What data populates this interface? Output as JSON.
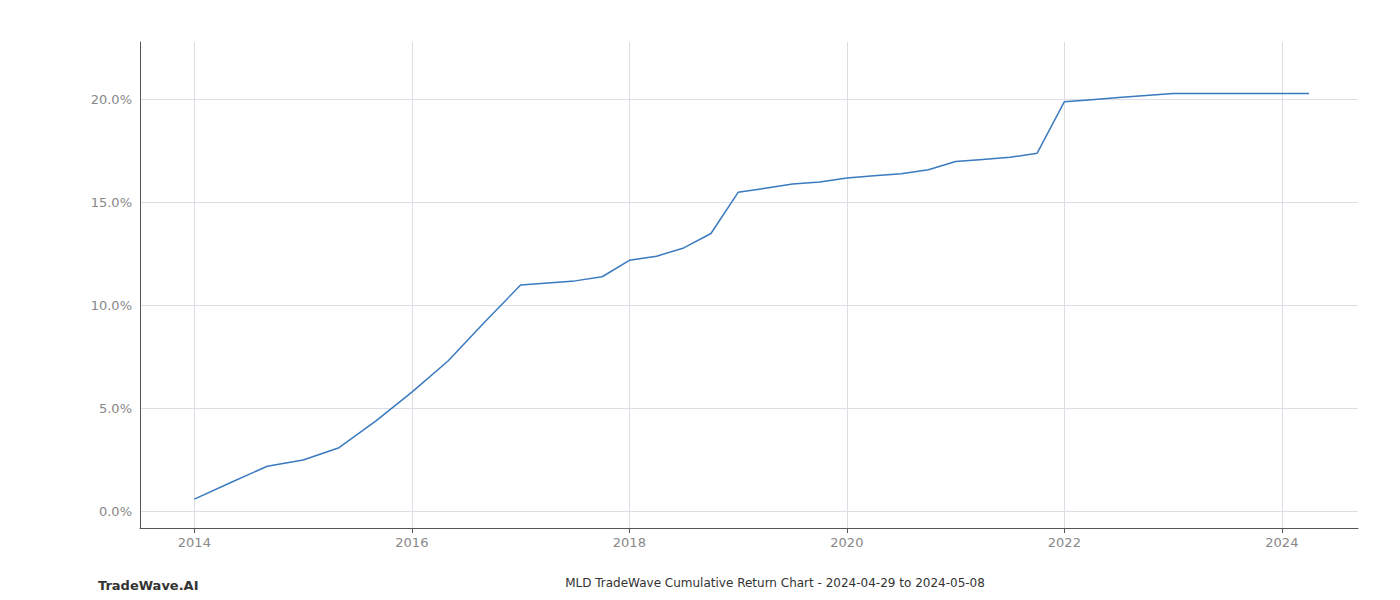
{
  "chart_data": {
    "type": "line",
    "title": "MLD TradeWave Cumulative Return Chart - 2024-04-29 to 2024-05-08",
    "annotations": [
      "TradeWave.AI"
    ],
    "x": [
      2014.0,
      2014.33,
      2014.67,
      2015.0,
      2015.33,
      2015.67,
      2016.0,
      2016.33,
      2016.67,
      2017.0,
      2017.25,
      2017.5,
      2017.75,
      2018.0,
      2018.25,
      2018.5,
      2018.75,
      2019.0,
      2019.25,
      2019.5,
      2019.75,
      2020.0,
      2020.25,
      2020.5,
      2020.75,
      2021.0,
      2021.25,
      2021.5,
      2021.75,
      2022.0,
      2022.25,
      2022.5,
      2022.75,
      2023.0,
      2023.25,
      2023.5,
      2023.75,
      2024.0,
      2024.25
    ],
    "values": [
      0.006,
      0.014,
      0.022,
      0.025,
      0.031,
      0.044,
      0.058,
      0.073,
      0.092,
      0.11,
      0.111,
      0.112,
      0.114,
      0.122,
      0.124,
      0.128,
      0.135,
      0.155,
      0.157,
      0.159,
      0.16,
      0.162,
      0.163,
      0.164,
      0.166,
      0.17,
      0.171,
      0.172,
      0.174,
      0.199,
      0.2,
      0.201,
      0.202,
      0.203,
      0.203,
      0.203,
      0.203,
      0.203,
      0.203
    ],
    "color": "#3a7abf",
    "xlim": [
      2013.5,
      2024.7
    ],
    "ylim": [
      -0.008,
      0.228
    ],
    "xticks": [
      2014,
      2016,
      2018,
      2020,
      2022,
      2024
    ],
    "yticks": [
      {
        "value": 0.0,
        "label": "0.0%"
      },
      {
        "value": 0.05,
        "label": "5.0%"
      },
      {
        "value": 0.1,
        "label": "10.0%"
      },
      {
        "value": 0.15,
        "label": "15.0%"
      },
      {
        "value": 0.2,
        "label": "20.0%"
      }
    ],
    "grid": true
  }
}
